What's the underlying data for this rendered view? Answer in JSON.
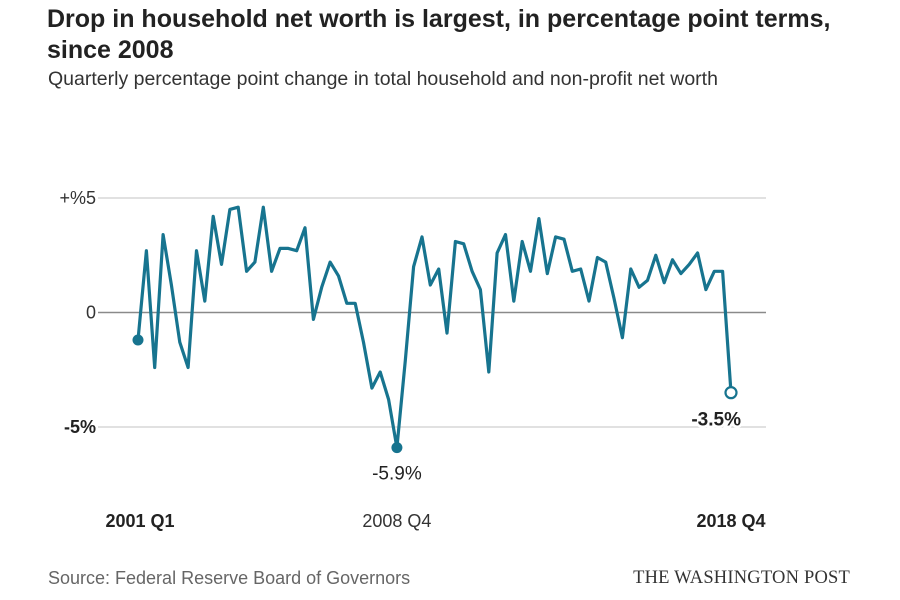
{
  "header": {
    "title": "Drop in household net worth is largest, in percentage point terms, since 2008",
    "subtitle": "Quarterly percentage point change in total household and non-profit net worth"
  },
  "footer": {
    "source": "Source: Federal Reserve Board of Governors",
    "brand": "THE WASHINGTON POST"
  },
  "colors": {
    "line": "#17748f",
    "grid": "#cfcfcf",
    "zero_line": "#8a8a8a",
    "text": "#222222"
  },
  "chart_data": {
    "type": "line",
    "title": "Drop in household net worth is largest, in percentage point terms, since 2008",
    "subtitle": "Quarterly percentage point change in total household and non-profit net worth",
    "xlabel": "",
    "ylabel": "",
    "ylim": [
      -6.5,
      5.5
    ],
    "grid": true,
    "y_ticks": [
      {
        "value": 5,
        "label": "+%5"
      },
      {
        "value": 0,
        "label": "0"
      },
      {
        "value": -5,
        "label": "-5%"
      }
    ],
    "x_ticks": [
      {
        "label": "2001 Q1",
        "index": 0,
        "bold": true
      },
      {
        "label": "2008 Q4",
        "index": 31,
        "bold": false
      },
      {
        "label": "2018 Q4",
        "index": 71,
        "bold": true
      }
    ],
    "series": [
      {
        "x": [
          "2001 Q1",
          "2001 Q2",
          "2001 Q3",
          "2001 Q4",
          "2002 Q1",
          "2002 Q2",
          "2002 Q3",
          "2002 Q4",
          "2003 Q1",
          "2003 Q2",
          "2003 Q3",
          "2003 Q4",
          "2004 Q1",
          "2004 Q2",
          "2004 Q3",
          "2004 Q4",
          "2005 Q1",
          "2005 Q2",
          "2005 Q3",
          "2005 Q4",
          "2006 Q1",
          "2006 Q2",
          "2006 Q3",
          "2006 Q4",
          "2007 Q1",
          "2007 Q2",
          "2007 Q3",
          "2007 Q4",
          "2008 Q1",
          "2008 Q2",
          "2008 Q3",
          "2008 Q4",
          "2009 Q1",
          "2009 Q2",
          "2009 Q3",
          "2009 Q4",
          "2010 Q1",
          "2010 Q2",
          "2010 Q3",
          "2010 Q4",
          "2011 Q1",
          "2011 Q2",
          "2011 Q3",
          "2011 Q4",
          "2012 Q1",
          "2012 Q2",
          "2012 Q3",
          "2012 Q4",
          "2013 Q1",
          "2013 Q2",
          "2013 Q3",
          "2013 Q4",
          "2014 Q1",
          "2014 Q2",
          "2014 Q3",
          "2014 Q4",
          "2015 Q1",
          "2015 Q2",
          "2015 Q3",
          "2015 Q4",
          "2016 Q1",
          "2016 Q2",
          "2016 Q3",
          "2016 Q4",
          "2017 Q1",
          "2017 Q2",
          "2017 Q3",
          "2017 Q4",
          "2018 Q1",
          "2018 Q2",
          "2018 Q3",
          "2018 Q4"
        ],
        "values": [
          -1.2,
          2.7,
          -2.4,
          3.4,
          1.2,
          -1.3,
          -2.4,
          2.7,
          0.5,
          4.2,
          2.1,
          4.5,
          4.6,
          1.8,
          2.2,
          4.6,
          1.8,
          2.8,
          2.8,
          2.7,
          3.7,
          -0.3,
          1.1,
          2.2,
          1.6,
          0.4,
          0.4,
          -1.3,
          -3.3,
          -2.6,
          -3.8,
          -5.9,
          -2.1,
          2.0,
          3.3,
          1.2,
          1.9,
          -0.9,
          3.1,
          3.0,
          1.8,
          1.0,
          -2.6,
          2.6,
          3.4,
          0.5,
          3.1,
          1.8,
          4.1,
          1.7,
          3.3,
          3.2,
          1.8,
          1.9,
          0.5,
          2.4,
          2.2,
          0.6,
          -1.1,
          1.9,
          1.1,
          1.4,
          2.5,
          1.3,
          2.3,
          1.7,
          2.1,
          2.6,
          1.0,
          1.8,
          1.8,
          -3.5
        ]
      }
    ],
    "annotations": [
      {
        "index": 0,
        "text": "",
        "marker": "filled"
      },
      {
        "index": 31,
        "text": "-5.9%",
        "marker": "filled",
        "bold": false
      },
      {
        "index": 71,
        "text": "-3.5%",
        "marker": "open",
        "bold": true
      }
    ]
  }
}
